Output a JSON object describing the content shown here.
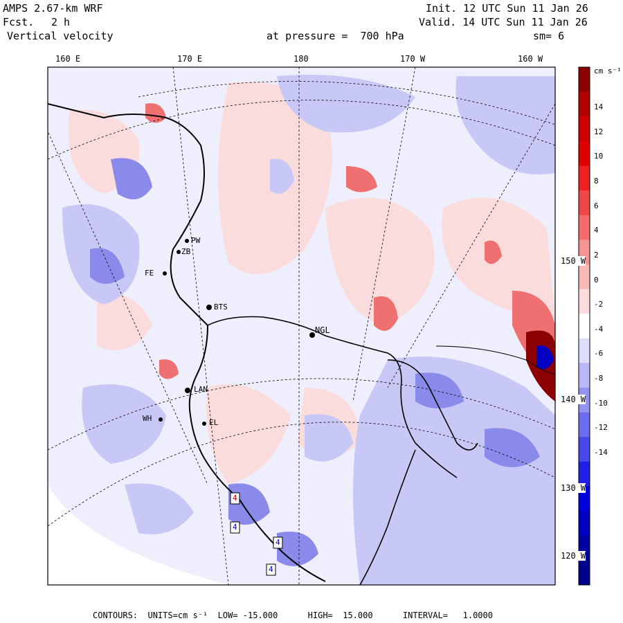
{
  "header": {
    "model": "AMPS 2.67-km WRF",
    "fcst_label": "Fcst.",
    "fcst_value": "2 h",
    "field": "Vertical velocity",
    "pressure_text": "at pressure =  700 hPa",
    "init": "Init. 12 UTC Sun 11 Jan 26",
    "valid": "Valid. 14 UTC Sun 11 Jan 26",
    "smoothing": "sm= 6"
  },
  "longitude_labels": [
    "160 E",
    "170 E",
    "180",
    "170 W",
    "160 W"
  ],
  "latitude_labels": [
    "150 W",
    "140 W",
    "130 W",
    "120 W"
  ],
  "stations": [
    "BTS",
    "NGL",
    "LAN",
    "EL",
    "WH",
    "FE",
    "ZB",
    "PW"
  ],
  "contour_box_labels": [
    "4",
    "4",
    "4",
    "4"
  ],
  "colorbar": {
    "units": "cm s⁻¹",
    "ticks": [
      "14",
      "12",
      "10",
      "8",
      "6",
      "4",
      "2",
      "0",
      "-2",
      "-4",
      "-6",
      "-8",
      "-10",
      "-12",
      "-14"
    ],
    "colors": [
      "#8b0000",
      "#b00000",
      "#cc0000",
      "#e00000",
      "#ee2020",
      "#f04848",
      "#f36c6c",
      "#f59494",
      "#f8b8b8",
      "#fbdcdc",
      "#ffffff",
      "#dcdcfb",
      "#b8b8f8",
      "#9494f0",
      "#6c6cec",
      "#4848ea",
      "#2020e6",
      "#0000dd",
      "#0000c0",
      "#0000a0",
      "#00008a"
    ]
  },
  "footer": {
    "contours": "CONTOURS:  UNITS=cm s⁻¹  LOW= -15.000      HIGH=  15.000      INTERVAL=   1.0000"
  },
  "map_colors": {
    "background_light": "#eeeefc",
    "pink": "#fbdcdc",
    "blue_light": "#c8c8f6",
    "blue_mid": "#8a8aea",
    "red_mid": "#ee7070",
    "coast": "#000000"
  }
}
